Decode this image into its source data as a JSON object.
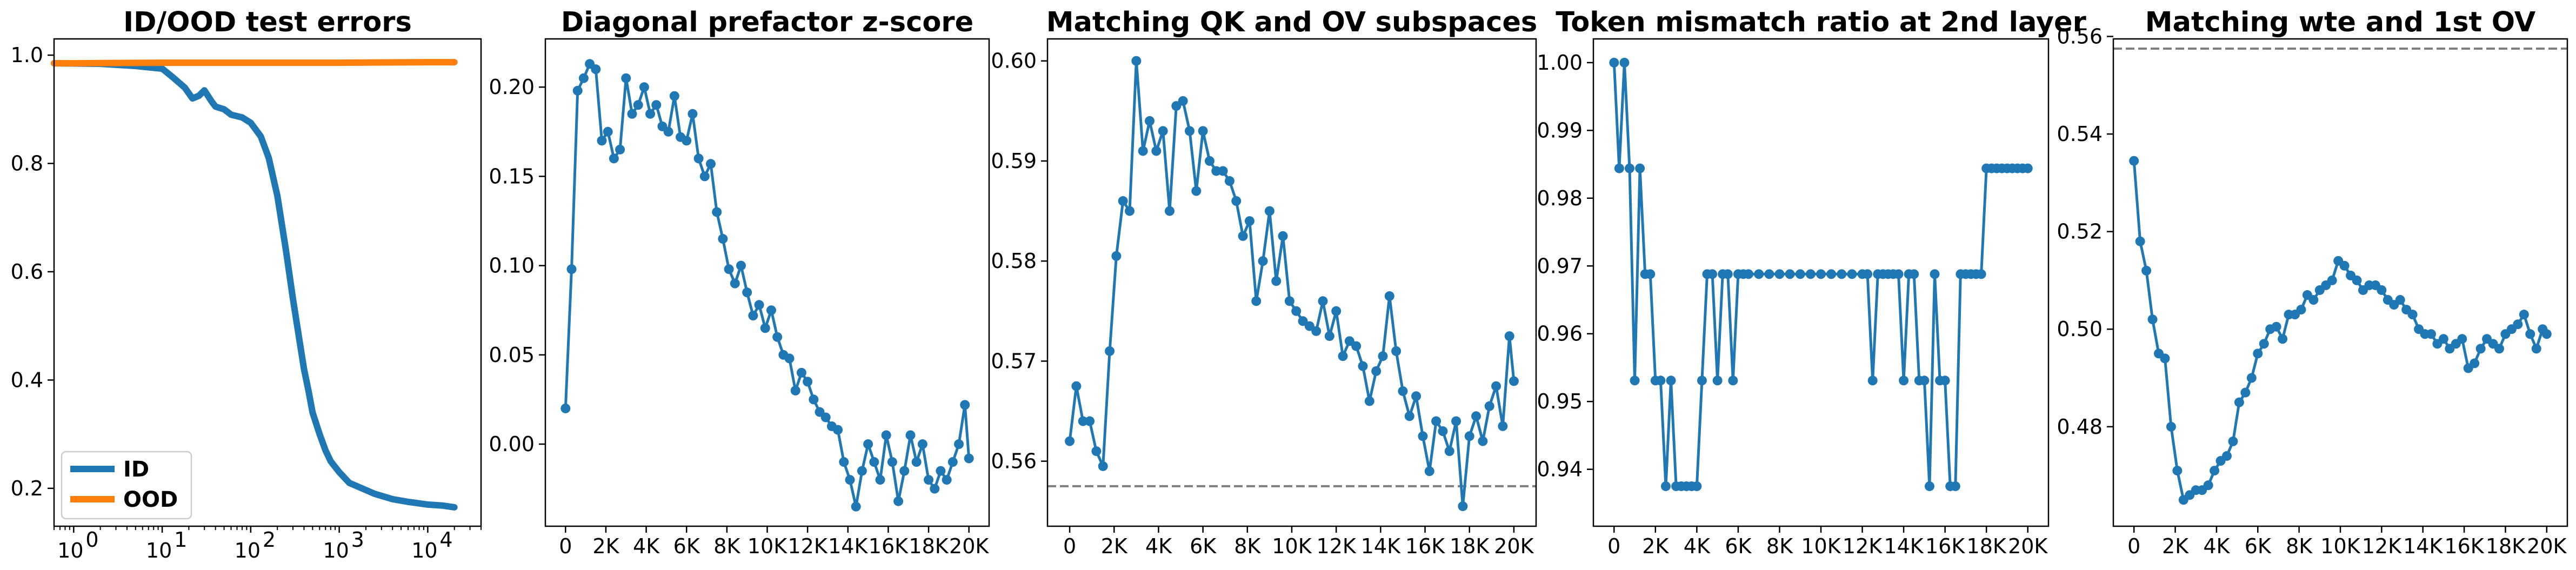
{
  "chart_data": [
    {
      "type": "line",
      "title": "ID/OOD test errors",
      "xscale": "log",
      "xlim": [
        0.6,
        40000
      ],
      "ylim": [
        0.13,
        1.03
      ],
      "xticks": [
        1,
        10,
        100,
        1000,
        10000
      ],
      "xtick_labels": [
        "10",
        "10",
        "10",
        "10",
        "10"
      ],
      "xtick_exponents": [
        "0",
        "1",
        "2",
        "3",
        "4"
      ],
      "yticks": [
        0.2,
        0.4,
        0.6,
        0.8,
        1.0
      ],
      "ytick_labels": [
        "0.2",
        "0.4",
        "0.6",
        "0.8",
        "1.0"
      ],
      "legend_position": "lower-left",
      "series": [
        {
          "name": "ID",
          "color": "#1f77b4",
          "x": [
            0.6,
            2,
            5,
            10,
            13,
            18,
            22,
            26,
            30,
            36,
            40,
            50,
            60,
            80,
            100,
            130,
            160,
            200,
            250,
            300,
            350,
            400,
            450,
            500,
            600,
            700,
            800,
            1000,
            1300,
            1800,
            2500,
            4000,
            6000,
            10000,
            15000,
            20000
          ],
          "y": [
            0.985,
            0.984,
            0.98,
            0.975,
            0.96,
            0.94,
            0.92,
            0.925,
            0.935,
            0.915,
            0.905,
            0.9,
            0.89,
            0.885,
            0.875,
            0.85,
            0.81,
            0.74,
            0.64,
            0.55,
            0.48,
            0.42,
            0.38,
            0.34,
            0.3,
            0.27,
            0.25,
            0.23,
            0.21,
            0.2,
            0.19,
            0.18,
            0.175,
            0.17,
            0.168,
            0.165
          ]
        },
        {
          "name": "OOD",
          "color": "#ff7f0e",
          "x": [
            0.6,
            1,
            10,
            100,
            1000,
            10000,
            20000
          ],
          "y": [
            0.985,
            0.985,
            0.986,
            0.986,
            0.986,
            0.987,
            0.987
          ]
        }
      ]
    },
    {
      "type": "line",
      "title": "Diagonal prefactor z-score",
      "xlim": [
        -1000,
        21000
      ],
      "ylim": [
        -0.046,
        0.227
      ],
      "xticks": [
        0,
        2000,
        4000,
        6000,
        8000,
        10000,
        12000,
        14000,
        16000,
        18000,
        20000
      ],
      "xtick_labels": [
        "0",
        "2K",
        "4K",
        "6K",
        "8K",
        "10K",
        "12K",
        "14K",
        "16K",
        "18K",
        "20K"
      ],
      "yticks": [
        0.0,
        0.05,
        0.1,
        0.15,
        0.2
      ],
      "ytick_labels": [
        "0.00",
        "0.05",
        "0.10",
        "0.15",
        "0.20"
      ],
      "series": [
        {
          "color": "#1f77b4",
          "x": [
            0,
            300,
            600,
            900,
            1200,
            1500,
            1800,
            2100,
            2400,
            2700,
            3000,
            3300,
            3600,
            3900,
            4200,
            4500,
            4800,
            5100,
            5400,
            5700,
            6000,
            6300,
            6600,
            6900,
            7200,
            7500,
            7800,
            8100,
            8400,
            8700,
            9000,
            9300,
            9600,
            9900,
            10200,
            10500,
            10800,
            11100,
            11400,
            11700,
            12000,
            12300,
            12600,
            12900,
            13200,
            13500,
            13800,
            14100,
            14400,
            14700,
            15000,
            15300,
            15600,
            15900,
            16200,
            16500,
            16800,
            17100,
            17400,
            17700,
            18000,
            18300,
            18600,
            18900,
            19200,
            19500,
            19800,
            20000
          ],
          "y": [
            0.02,
            0.098,
            0.198,
            0.205,
            0.213,
            0.21,
            0.17,
            0.175,
            0.16,
            0.165,
            0.205,
            0.185,
            0.19,
            0.2,
            0.185,
            0.19,
            0.178,
            0.175,
            0.195,
            0.172,
            0.17,
            0.185,
            0.16,
            0.15,
            0.157,
            0.13,
            0.115,
            0.098,
            0.09,
            0.1,
            0.085,
            0.072,
            0.078,
            0.065,
            0.075,
            0.06,
            0.05,
            0.048,
            0.03,
            0.04,
            0.035,
            0.025,
            0.018,
            0.015,
            0.01,
            0.008,
            -0.01,
            -0.02,
            -0.035,
            -0.015,
            0.0,
            -0.01,
            -0.02,
            0.005,
            -0.01,
            -0.032,
            -0.015,
            0.005,
            -0.01,
            0.0,
            -0.02,
            -0.025,
            -0.015,
            -0.02,
            -0.01,
            0.0,
            0.022,
            -0.008
          ]
        }
      ]
    },
    {
      "type": "line",
      "title": "Matching QK and OV subspaces",
      "xlim": [
        -1000,
        21000
      ],
      "ylim": [
        0.5535,
        0.6022
      ],
      "xticks": [
        0,
        2000,
        4000,
        6000,
        8000,
        10000,
        12000,
        14000,
        16000,
        18000,
        20000
      ],
      "xtick_labels": [
        "0",
        "2K",
        "4K",
        "6K",
        "8K",
        "10K",
        "12K",
        "14K",
        "16K",
        "18K",
        "20K"
      ],
      "yticks": [
        0.56,
        0.57,
        0.58,
        0.59,
        0.6
      ],
      "ytick_labels": [
        "0.56",
        "0.57",
        "0.58",
        "0.59",
        "0.60"
      ],
      "reference_line": 0.5575,
      "series": [
        {
          "color": "#1f77b4",
          "x": [
            0,
            300,
            600,
            900,
            1200,
            1500,
            1800,
            2100,
            2400,
            2700,
            3000,
            3300,
            3600,
            3900,
            4200,
            4500,
            4800,
            5100,
            5400,
            5700,
            6000,
            6300,
            6600,
            6900,
            7200,
            7500,
            7800,
            8100,
            8400,
            8700,
            9000,
            9300,
            9600,
            9900,
            10200,
            10500,
            10800,
            11100,
            11400,
            11700,
            12000,
            12300,
            12600,
            12900,
            13200,
            13500,
            13800,
            14100,
            14400,
            14700,
            15000,
            15300,
            15600,
            15900,
            16200,
            16500,
            16800,
            17100,
            17400,
            17700,
            18000,
            18300,
            18600,
            18900,
            19200,
            19500,
            19800,
            20000
          ],
          "y": [
            0.562,
            0.5675,
            0.564,
            0.564,
            0.561,
            0.5595,
            0.571,
            0.5805,
            0.586,
            0.585,
            0.6,
            0.591,
            0.594,
            0.591,
            0.593,
            0.585,
            0.5955,
            0.596,
            0.593,
            0.587,
            0.593,
            0.59,
            0.589,
            0.589,
            0.588,
            0.586,
            0.5825,
            0.584,
            0.576,
            0.58,
            0.585,
            0.578,
            0.5825,
            0.576,
            0.575,
            0.574,
            0.5735,
            0.573,
            0.576,
            0.5725,
            0.575,
            0.5705,
            0.572,
            0.5715,
            0.5695,
            0.566,
            0.569,
            0.5705,
            0.5765,
            0.571,
            0.567,
            0.5645,
            0.5665,
            0.5625,
            0.559,
            0.564,
            0.563,
            0.561,
            0.564,
            0.5555,
            0.5625,
            0.5645,
            0.562,
            0.5655,
            0.5675,
            0.5635,
            0.5725,
            0.568
          ]
        }
      ]
    },
    {
      "type": "line",
      "title": "Token mismatch ratio at 2nd layer",
      "xlim": [
        -1000,
        21000
      ],
      "ylim": [
        0.9316,
        1.0035
      ],
      "xticks": [
        0,
        2000,
        4000,
        6000,
        8000,
        10000,
        12000,
        14000,
        16000,
        18000,
        20000
      ],
      "xtick_labels": [
        "0",
        "2K",
        "4K",
        "6K",
        "8K",
        "10K",
        "12K",
        "14K",
        "16K",
        "18K",
        "20K"
      ],
      "yticks": [
        0.94,
        0.95,
        0.96,
        0.97,
        0.98,
        0.99,
        1.0
      ],
      "ytick_labels": [
        "0.94",
        "0.95",
        "0.96",
        "0.97",
        "0.98",
        "0.99",
        "1.00"
      ],
      "series": [
        {
          "color": "#1f77b4",
          "x": [
            0,
            250,
            500,
            750,
            1000,
            1250,
            1500,
            1750,
            2000,
            2250,
            2500,
            2750,
            3000,
            3250,
            3500,
            3750,
            4000,
            4250,
            4500,
            4750,
            5000,
            5250,
            5500,
            5750,
            6000,
            6250,
            6500,
            7000,
            7500,
            8000,
            8500,
            9000,
            9500,
            10000,
            10500,
            11000,
            11500,
            12000,
            12250,
            12500,
            12750,
            13000,
            13250,
            13500,
            13750,
            14000,
            14250,
            14500,
            14750,
            15000,
            15250,
            15500,
            15750,
            16000,
            16250,
            16500,
            16750,
            17000,
            17250,
            17500,
            17750,
            18000,
            18250,
            18500,
            18750,
            19000,
            19250,
            19500,
            19750,
            20000
          ],
          "y": [
            1.0,
            0.9844,
            1.0,
            0.9844,
            0.9531,
            0.9844,
            0.9688,
            0.9688,
            0.9531,
            0.9531,
            0.9375,
            0.9531,
            0.9375,
            0.9375,
            0.9375,
            0.9375,
            0.9375,
            0.9531,
            0.9688,
            0.9688,
            0.9531,
            0.9688,
            0.9688,
            0.9531,
            0.9688,
            0.9688,
            0.9688,
            0.9688,
            0.9688,
            0.9688,
            0.9688,
            0.9688,
            0.9688,
            0.9688,
            0.9688,
            0.9688,
            0.9688,
            0.9688,
            0.9688,
            0.9531,
            0.9688,
            0.9688,
            0.9688,
            0.9688,
            0.9688,
            0.9531,
            0.9688,
            0.9688,
            0.9531,
            0.9531,
            0.9375,
            0.9688,
            0.9531,
            0.9531,
            0.9375,
            0.9375,
            0.9688,
            0.9688,
            0.9688,
            0.9688,
            0.9688,
            0.9844,
            0.9844,
            0.9844,
            0.9844,
            0.9844,
            0.9844,
            0.9844,
            0.9844,
            0.9844
          ]
        }
      ]
    },
    {
      "type": "line",
      "title": "Matching wte and 1st OV",
      "xlim": [
        -1000,
        21000
      ],
      "ylim": [
        0.4596,
        0.5595
      ],
      "xticks": [
        0,
        2000,
        4000,
        6000,
        8000,
        10000,
        12000,
        14000,
        16000,
        18000,
        20000
      ],
      "xtick_labels": [
        "0",
        "2K",
        "4K",
        "6K",
        "8K",
        "10K",
        "12K",
        "14K",
        "16K",
        "18K",
        "20K"
      ],
      "yticks": [
        0.48,
        0.5,
        0.52,
        0.54,
        0.56
      ],
      "ytick_labels": [
        "0.48",
        "0.50",
        "0.52",
        "0.54",
        "0.56"
      ],
      "reference_line": 0.5575,
      "series": [
        {
          "color": "#1f77b4",
          "x": [
            0,
            300,
            600,
            900,
            1200,
            1500,
            1800,
            2100,
            2400,
            2700,
            3000,
            3300,
            3600,
            3900,
            4200,
            4500,
            4800,
            5100,
            5400,
            5700,
            6000,
            6300,
            6600,
            6900,
            7200,
            7500,
            7800,
            8100,
            8400,
            8700,
            9000,
            9300,
            9600,
            9900,
            10200,
            10500,
            10800,
            11100,
            11400,
            11700,
            12000,
            12300,
            12600,
            12900,
            13200,
            13500,
            13800,
            14100,
            14400,
            14700,
            15000,
            15300,
            15600,
            15900,
            16200,
            16500,
            16800,
            17100,
            17400,
            17700,
            18000,
            18300,
            18600,
            18900,
            19200,
            19500,
            19800,
            20000
          ],
          "y": [
            0.5345,
            0.518,
            0.512,
            0.502,
            0.495,
            0.494,
            0.48,
            0.471,
            0.465,
            0.466,
            0.467,
            0.467,
            0.468,
            0.471,
            0.473,
            0.474,
            0.477,
            0.485,
            0.487,
            0.49,
            0.495,
            0.497,
            0.5,
            0.5005,
            0.498,
            0.503,
            0.503,
            0.504,
            0.507,
            0.506,
            0.508,
            0.509,
            0.51,
            0.514,
            0.513,
            0.511,
            0.51,
            0.508,
            0.509,
            0.509,
            0.508,
            0.506,
            0.505,
            0.506,
            0.504,
            0.503,
            0.5,
            0.499,
            0.499,
            0.497,
            0.498,
            0.496,
            0.497,
            0.498,
            0.492,
            0.493,
            0.496,
            0.498,
            0.497,
            0.496,
            0.499,
            0.5,
            0.501,
            0.503,
            0.499,
            0.496,
            0.5,
            0.499
          ]
        }
      ]
    }
  ]
}
